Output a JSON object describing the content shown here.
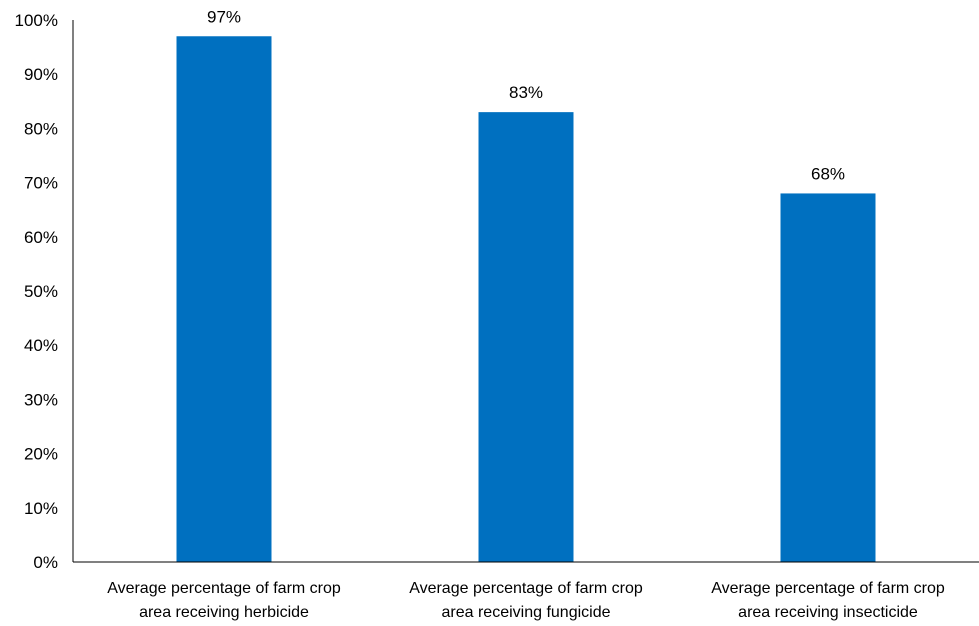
{
  "chart_data": {
    "type": "bar",
    "categories": [
      [
        "Average percentage of farm crop",
        "area receiving herbicide"
      ],
      [
        "Average percentage of farm crop",
        "area receiving fungicide"
      ],
      [
        "Average percentage of farm crop",
        "area receiving insecticide"
      ]
    ],
    "values": [
      97,
      83,
      68
    ],
    "data_labels": [
      "97%",
      "83%",
      "68%"
    ],
    "ylim": [
      0,
      100
    ],
    "ytick_labels": [
      "0%",
      "10%",
      "20%",
      "30%",
      "40%",
      "50%",
      "60%",
      "70%",
      "80%",
      "90%",
      "100%"
    ],
    "grid": false,
    "legend": "none",
    "title": "",
    "xlabel": "",
    "ylabel": "",
    "colors": {
      "bar": "#0070C0",
      "axis": "#000000"
    }
  }
}
